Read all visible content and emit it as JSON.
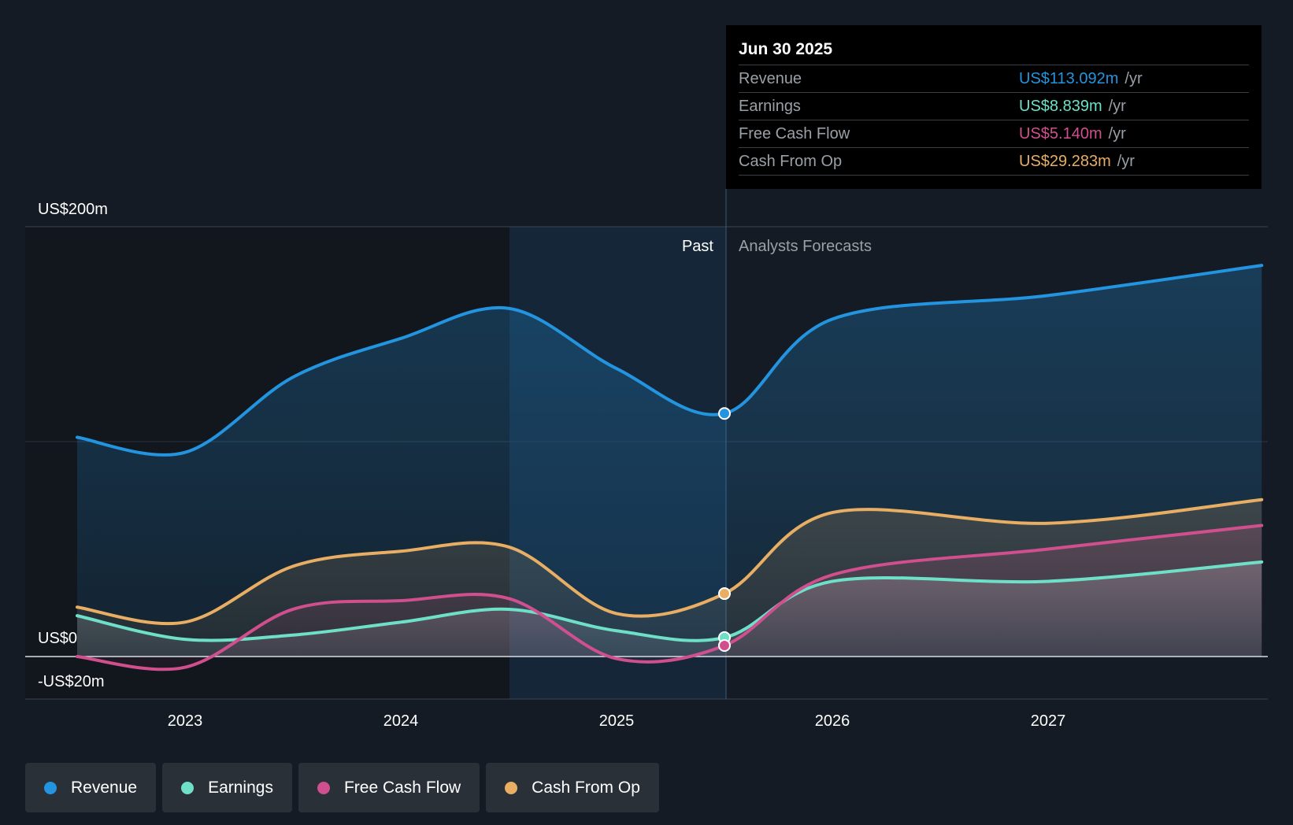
{
  "chart_data": {
    "type": "line",
    "x_ticks": [
      "2023",
      "2024",
      "2025",
      "2026",
      "2027"
    ],
    "y_labels": {
      "top": "US$200m",
      "zero": "US$0",
      "bottom": "-US$20m"
    },
    "ylim": [
      -20,
      200
    ],
    "regions": {
      "past_label": "Past",
      "forecast_label": "Analysts Forecasts"
    },
    "series": [
      {
        "name": "Revenue",
        "color": "#2394df",
        "points": [
          [
            2022.5,
            102
          ],
          [
            2023.0,
            95
          ],
          [
            2023.5,
            130
          ],
          [
            2024.0,
            148
          ],
          [
            2024.5,
            162
          ],
          [
            2025.0,
            134
          ],
          [
            2025.5,
            113.092
          ],
          [
            2026.0,
            157
          ],
          [
            2027.0,
            168
          ],
          [
            2027.99,
            182
          ]
        ]
      },
      {
        "name": "Earnings",
        "color": "#6ee0c8",
        "points": [
          [
            2022.5,
            19
          ],
          [
            2023.0,
            8
          ],
          [
            2023.5,
            10
          ],
          [
            2024.0,
            16
          ],
          [
            2024.5,
            22
          ],
          [
            2025.0,
            12
          ],
          [
            2025.5,
            8.839
          ],
          [
            2026.0,
            35
          ],
          [
            2027.0,
            35
          ],
          [
            2027.99,
            44
          ]
        ]
      },
      {
        "name": "Free Cash Flow",
        "color": "#d04f8e",
        "points": [
          [
            2022.5,
            0
          ],
          [
            2023.0,
            -5
          ],
          [
            2023.5,
            22
          ],
          [
            2024.0,
            26
          ],
          [
            2024.5,
            27
          ],
          [
            2025.0,
            -1
          ],
          [
            2025.5,
            5.14
          ],
          [
            2026.0,
            38
          ],
          [
            2027.0,
            50
          ],
          [
            2027.99,
            61
          ]
        ]
      },
      {
        "name": "Cash From Op",
        "color": "#e8ae64",
        "points": [
          [
            2022.5,
            23
          ],
          [
            2023.0,
            16
          ],
          [
            2023.5,
            42
          ],
          [
            2024.0,
            49
          ],
          [
            2024.5,
            51
          ],
          [
            2025.0,
            20
          ],
          [
            2025.5,
            29.283
          ],
          [
            2026.0,
            67
          ],
          [
            2027.0,
            62
          ],
          [
            2027.99,
            73
          ]
        ]
      }
    ]
  },
  "tooltip": {
    "date": "Jun 30 2025",
    "rows": [
      {
        "label": "Revenue",
        "value": "US$113.092m",
        "unit": "/yr",
        "color": "#2394df"
      },
      {
        "label": "Earnings",
        "value": "US$8.839m",
        "unit": "/yr",
        "color": "#6ee0c8"
      },
      {
        "label": "Free Cash Flow",
        "value": "US$5.140m",
        "unit": "/yr",
        "color": "#d04f8e"
      },
      {
        "label": "Cash From Op",
        "value": "US$29.283m",
        "unit": "/yr",
        "color": "#e8ae64"
      }
    ]
  },
  "legend": [
    {
      "label": "Revenue",
      "color": "#2394df"
    },
    {
      "label": "Earnings",
      "color": "#6ee0c8"
    },
    {
      "label": "Free Cash Flow",
      "color": "#d04f8e"
    },
    {
      "label": "Cash From Op",
      "color": "#e8ae64"
    }
  ]
}
